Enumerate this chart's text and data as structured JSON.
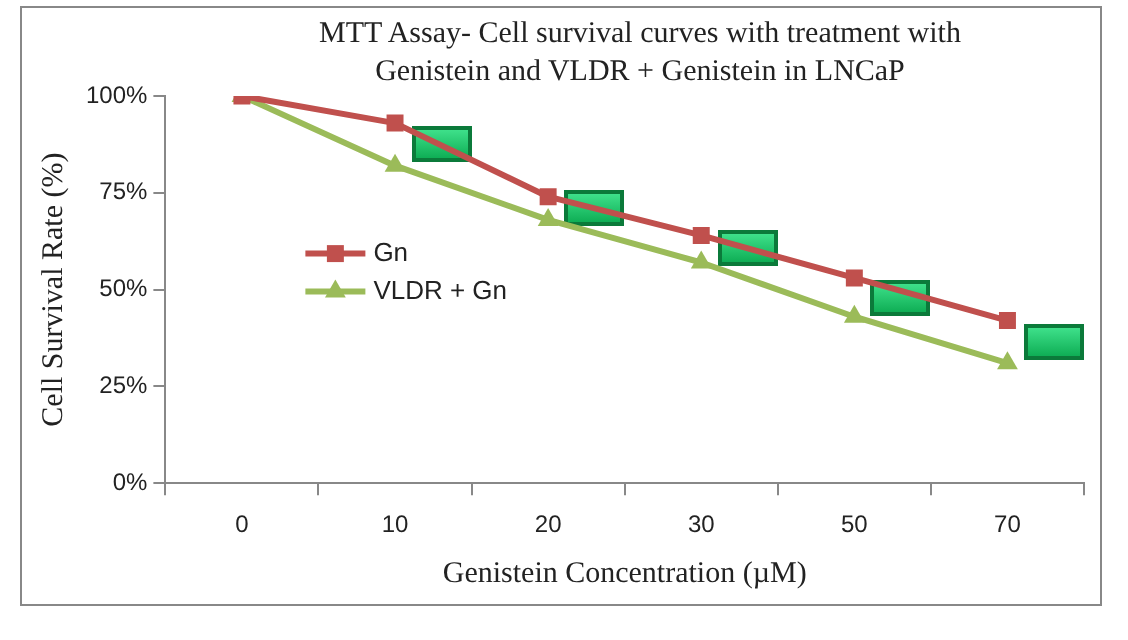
{
  "chart_data": {
    "type": "line",
    "title": "MTT Assay- Cell survival curves with treatment with\nGenistein and VLDR + Genistein in LNCaP",
    "xlabel": "Genistein Concentration (µM)",
    "ylabel": "Cell Survival Rate (%)",
    "categories": [
      "0",
      "10",
      "20",
      "30",
      "50",
      "70"
    ],
    "series": [
      {
        "name": "Gn",
        "color": "#c0504d",
        "marker": "square",
        "values": [
          100,
          93,
          74,
          64,
          53,
          42
        ]
      },
      {
        "name": "VLDR + Gn",
        "color": "#9bbb59",
        "marker": "triangle",
        "values": [
          100,
          82,
          68,
          57,
          43,
          31
        ]
      }
    ],
    "ylim": [
      0,
      100
    ],
    "yticks": [
      {
        "value": 0,
        "label": "0%"
      },
      {
        "value": 25,
        "label": "25%"
      },
      {
        "value": 50,
        "label": "50%"
      },
      {
        "value": 75,
        "label": "75%"
      },
      {
        "value": 100,
        "label": "100%"
      }
    ],
    "grid": false,
    "legend": "left",
    "line_style": "solid"
  }
}
